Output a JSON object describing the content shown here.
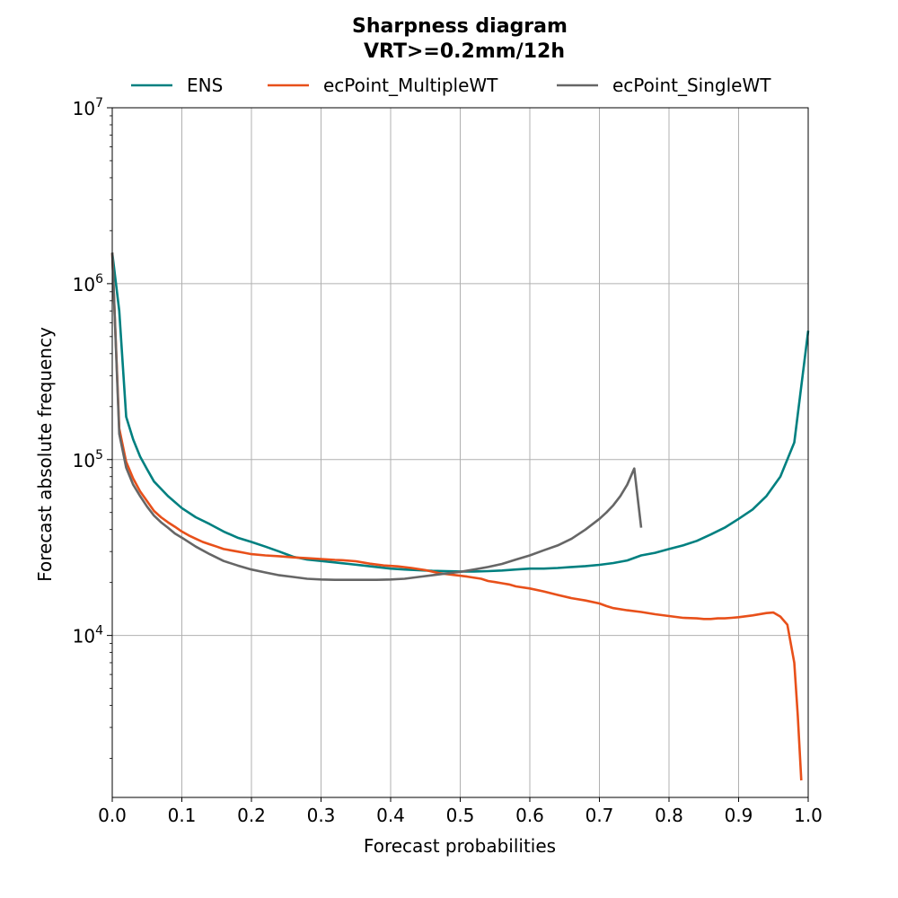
{
  "chart_data": {
    "type": "line",
    "title": "Sharpness diagram",
    "subtitle": "VRT>=0.2mm/12h",
    "xlabel": "Forecast probabilities",
    "ylabel": "Forecast absolute frequency",
    "xlim": [
      0.0,
      1.0
    ],
    "ylim": [
      1200,
      10000000
    ],
    "yscale": "log",
    "grid": true,
    "legend_position": "top",
    "x_ticks": [
      "0.0",
      "0.1",
      "0.2",
      "0.3",
      "0.4",
      "0.5",
      "0.6",
      "0.7",
      "0.8",
      "0.9",
      "1.0"
    ],
    "y_ticks": [
      {
        "value": 10000,
        "base": "10",
        "exp": "4"
      },
      {
        "value": 100000,
        "base": "10",
        "exp": "5"
      },
      {
        "value": 1000000,
        "base": "10",
        "exp": "6"
      },
      {
        "value": 10000000,
        "base": "10",
        "exp": "7"
      }
    ],
    "series": [
      {
        "name": "ENS",
        "color": "#008080",
        "x": [
          0.0,
          0.01,
          0.02,
          0.03,
          0.04,
          0.05,
          0.06,
          0.08,
          0.1,
          0.12,
          0.14,
          0.16,
          0.18,
          0.2,
          0.22,
          0.24,
          0.26,
          0.28,
          0.3,
          0.32,
          0.34,
          0.36,
          0.38,
          0.4,
          0.42,
          0.44,
          0.46,
          0.48,
          0.5,
          0.52,
          0.54,
          0.56,
          0.58,
          0.6,
          0.62,
          0.64,
          0.66,
          0.68,
          0.7,
          0.72,
          0.74,
          0.76,
          0.78,
          0.8,
          0.82,
          0.84,
          0.86,
          0.88,
          0.9,
          0.92,
          0.94,
          0.96,
          0.98,
          1.0
        ],
        "y": [
          1500000,
          700000,
          175000,
          130000,
          104000,
          88000,
          75000,
          62000,
          53000,
          47000,
          43000,
          39000,
          36000,
          34000,
          32000,
          30000,
          28000,
          27000,
          26500,
          26000,
          25500,
          25000,
          24500,
          24000,
          23700,
          23500,
          23300,
          23200,
          23100,
          23100,
          23200,
          23400,
          23700,
          24000,
          24000,
          24200,
          24500,
          24800,
          25200,
          25800,
          26700,
          28500,
          29500,
          31000,
          32500,
          34500,
          37500,
          41000,
          46000,
          52000,
          62000,
          80000,
          125000,
          540000
        ]
      },
      {
        "name": "ecPoint_MultipleWT",
        "color": "#e8501a",
        "x": [
          0.0,
          0.01,
          0.02,
          0.03,
          0.04,
          0.05,
          0.06,
          0.07,
          0.08,
          0.09,
          0.1,
          0.11,
          0.12,
          0.13,
          0.14,
          0.15,
          0.16,
          0.17,
          0.18,
          0.19,
          0.2,
          0.22,
          0.24,
          0.26,
          0.28,
          0.3,
          0.32,
          0.33,
          0.35,
          0.37,
          0.39,
          0.41,
          0.43,
          0.45,
          0.47,
          0.49,
          0.51,
          0.53,
          0.54,
          0.55,
          0.56,
          0.57,
          0.58,
          0.6,
          0.62,
          0.64,
          0.66,
          0.68,
          0.7,
          0.71,
          0.72,
          0.74,
          0.76,
          0.78,
          0.8,
          0.82,
          0.84,
          0.85,
          0.86,
          0.87,
          0.88,
          0.89,
          0.9,
          0.92,
          0.94,
          0.95,
          0.96,
          0.97,
          0.98,
          0.985,
          0.99
        ],
        "y": [
          1500000,
          150000,
          97000,
          78000,
          66000,
          58000,
          51000,
          47000,
          44000,
          41500,
          39000,
          37000,
          35500,
          34000,
          33000,
          32000,
          31000,
          30500,
          30000,
          29500,
          29000,
          28500,
          28200,
          27800,
          27500,
          27200,
          26900,
          26800,
          26400,
          25600,
          25000,
          24700,
          24200,
          23500,
          22600,
          22100,
          21600,
          21000,
          20400,
          20100,
          19800,
          19500,
          19000,
          18500,
          17800,
          17000,
          16300,
          15800,
          15200,
          14700,
          14300,
          13900,
          13600,
          13200,
          12900,
          12600,
          12500,
          12400,
          12400,
          12500,
          12500,
          12600,
          12700,
          13000,
          13400,
          13500,
          12800,
          11500,
          7000,
          3500,
          1500
        ]
      },
      {
        "name": "ecPoint_SingleWT",
        "color": "#666666",
        "x": [
          0.0,
          0.01,
          0.02,
          0.03,
          0.04,
          0.05,
          0.06,
          0.07,
          0.08,
          0.09,
          0.1,
          0.12,
          0.14,
          0.16,
          0.18,
          0.2,
          0.22,
          0.24,
          0.26,
          0.28,
          0.3,
          0.32,
          0.34,
          0.36,
          0.38,
          0.4,
          0.42,
          0.44,
          0.46,
          0.48,
          0.5,
          0.52,
          0.54,
          0.56,
          0.58,
          0.6,
          0.62,
          0.64,
          0.66,
          0.68,
          0.7,
          0.71,
          0.72,
          0.73,
          0.74,
          0.75,
          0.76
        ],
        "y": [
          1500000,
          140000,
          90000,
          72000,
          62000,
          54000,
          48000,
          44000,
          41000,
          38000,
          36000,
          32000,
          29000,
          26500,
          25000,
          23700,
          22800,
          22000,
          21500,
          21000,
          20800,
          20700,
          20700,
          20700,
          20700,
          20800,
          21000,
          21500,
          22000,
          22500,
          23000,
          23700,
          24500,
          25500,
          27000,
          28500,
          30500,
          32500,
          35500,
          40000,
          46000,
          50000,
          55000,
          62000,
          72000,
          89000,
          41000
        ]
      }
    ]
  }
}
